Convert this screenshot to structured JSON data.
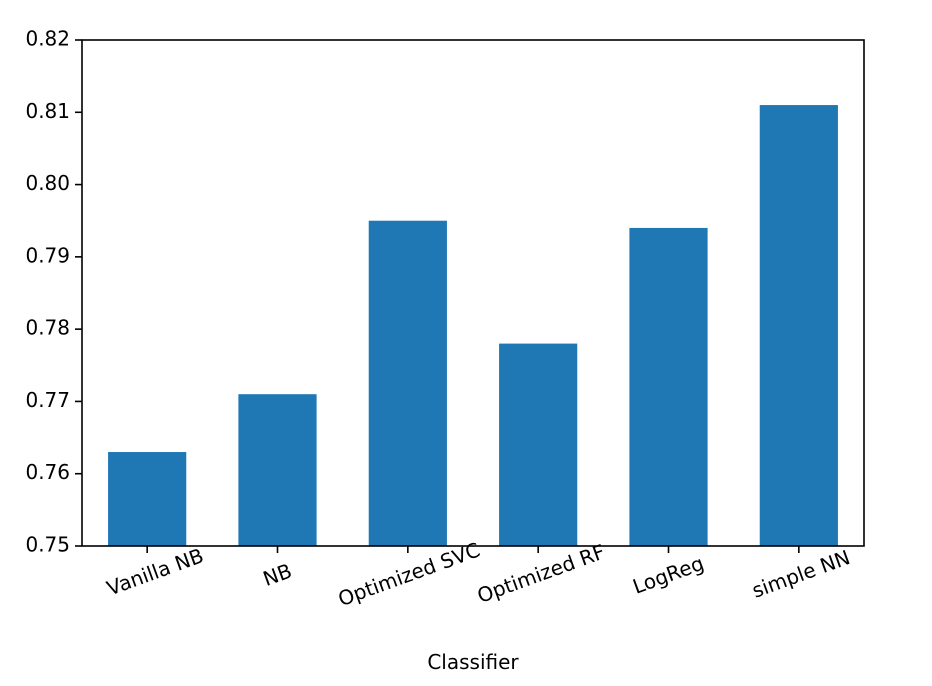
{
  "chart_data": {
    "type": "bar",
    "title": "",
    "xlabel": "Classifier",
    "ylabel": "",
    "categories": [
      "Vanilla NB",
      "NB",
      "Optimized SVC",
      "Optimized RF",
      "LogReg",
      "simple NN"
    ],
    "values": [
      0.763,
      0.771,
      0.795,
      0.778,
      0.794,
      0.811
    ],
    "ylim": [
      0.75,
      0.82
    ],
    "yticks": [
      "0.75",
      "0.76",
      "0.77",
      "0.78",
      "0.79",
      "0.80",
      "0.81",
      "0.82"
    ],
    "grid": false,
    "legend": "none",
    "bar_color": "#1f77b4",
    "xtick_rotation_deg": 20
  }
}
